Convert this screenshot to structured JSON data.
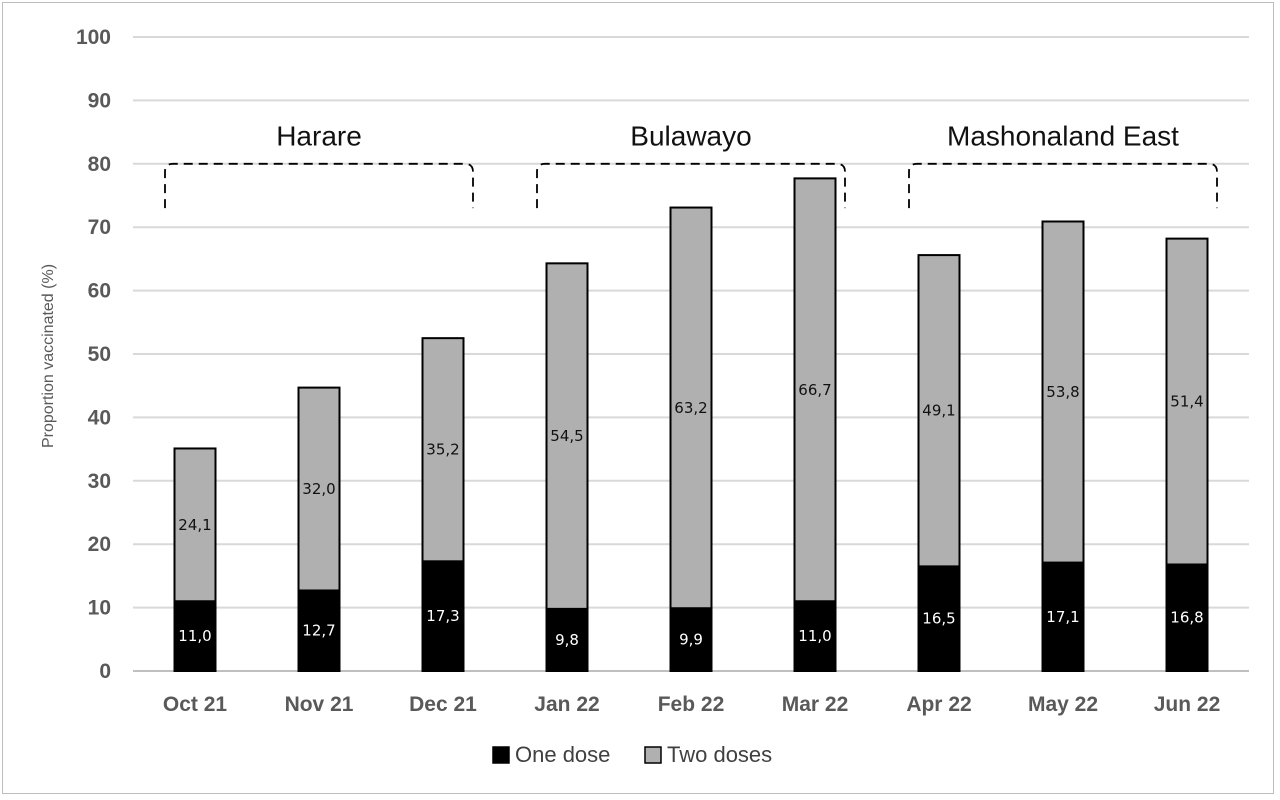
{
  "chart_data": {
    "type": "bar",
    "stacked": true,
    "categories": [
      "Oct 21",
      "Nov 21",
      "Dec 21",
      "Jan 22",
      "Feb 22",
      "Mar 22",
      "Apr 22",
      "May 22",
      "Jun 22"
    ],
    "series": [
      {
        "name": "One dose",
        "color": "#000000",
        "values": [
          11.0,
          12.7,
          17.3,
          9.8,
          9.9,
          11.0,
          16.5,
          17.1,
          16.8
        ],
        "labels": [
          "11,0",
          "12,7",
          "17,3",
          "9,8",
          "9,9",
          "11,0",
          "16,5",
          "17,1",
          "16,8"
        ]
      },
      {
        "name": "Two doses",
        "color": "#b0b0b0",
        "values": [
          24.1,
          32.0,
          35.2,
          54.5,
          63.2,
          66.7,
          49.1,
          53.8,
          51.4
        ],
        "labels": [
          "24,1",
          "32,0",
          "35,2",
          "54,5",
          "63,2",
          "66,7",
          "49,1",
          "53,8",
          "51,4"
        ]
      }
    ],
    "title": "",
    "xlabel": "",
    "ylabel": "Proportion vaccinated (%)",
    "ylim": [
      0,
      100
    ],
    "yticks": [
      "0",
      "10",
      "20",
      "30",
      "40",
      "50",
      "60",
      "70",
      "80",
      "90",
      "100"
    ],
    "grid": true,
    "legend_position": "bottom",
    "groups": [
      {
        "label": "Harare",
        "categories": [
          "Oct 21",
          "Nov 21",
          "Dec 21"
        ]
      },
      {
        "label": "Bulawayo",
        "categories": [
          "Jan 22",
          "Feb 22",
          "Mar 22"
        ]
      },
      {
        "label": "Mashonaland East",
        "categories": [
          "Apr 22",
          "May 22",
          "Jun 22"
        ]
      }
    ]
  }
}
